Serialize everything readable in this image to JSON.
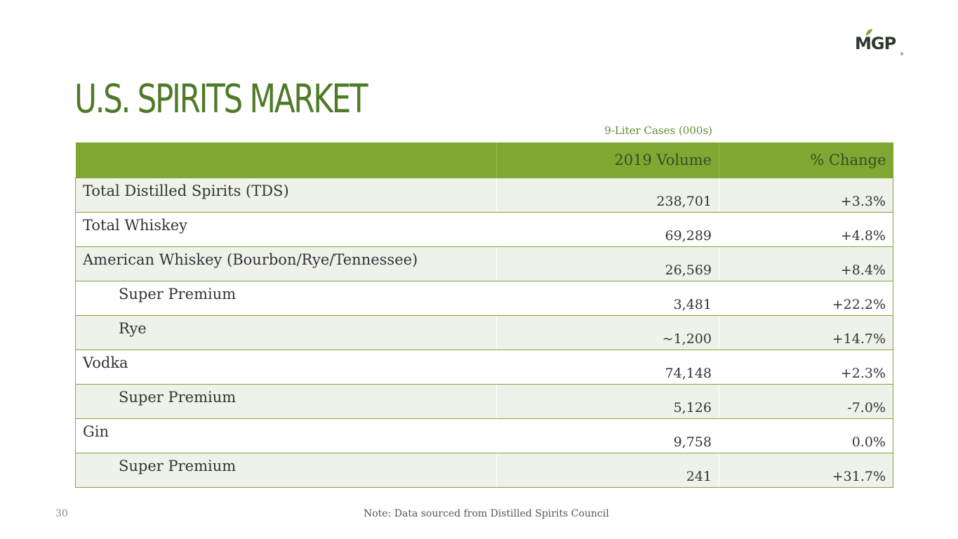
{
  "logo": {
    "text": "MGP",
    "brand_color": "#2b3a2a",
    "leaf_color": "#7ea832",
    "registered_mark": "®"
  },
  "title": "U.S. SPIRITS MARKET",
  "units_label": "9-Liter Cases (000s)",
  "table": {
    "columns": [
      "",
      "2019 Volume",
      "% Change"
    ],
    "rows": [
      {
        "label": "Total Distilled Spirits (TDS)",
        "volume": "238,701",
        "change": "+3.3%",
        "indent": false
      },
      {
        "label": "Total Whiskey",
        "volume": "69,289",
        "change": "+4.8%",
        "indent": false
      },
      {
        "label": "American Whiskey (Bourbon/Rye/Tennessee)",
        "volume": "26,569",
        "change": "+8.4%",
        "indent": false
      },
      {
        "label": "Super Premium",
        "volume": "3,481",
        "change": "+22.2%",
        "indent": true
      },
      {
        "label": "Rye",
        "volume": "~1,200",
        "change": "+14.7%",
        "indent": true
      },
      {
        "label": "Vodka",
        "volume": "74,148",
        "change": "+2.3%",
        "indent": false
      },
      {
        "label": "Super Premium",
        "volume": "5,126",
        "change": "-7.0%",
        "indent": true
      },
      {
        "label": "Gin",
        "volume": "9,758",
        "change": "0.0%",
        "indent": false
      },
      {
        "label": "Super Premium",
        "volume": "241",
        "change": "+31.7%",
        "indent": true
      }
    ]
  },
  "colors": {
    "accent_green": "#7ea832",
    "title_green": "#4f7a28",
    "shaded_row": "#eef2ea"
  },
  "footer": {
    "page_number": "30",
    "note": "Note: Data sourced from Distilled Spirits Council"
  }
}
